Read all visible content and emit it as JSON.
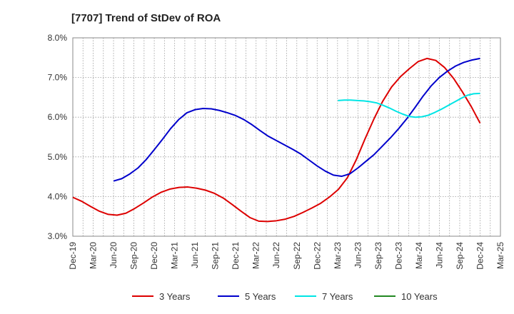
{
  "chart_data": {
    "type": "line",
    "title": "[7707]  Trend of StDev of ROA",
    "xlabel": "",
    "ylabel": "",
    "x_labels": [
      "Dec-19",
      "Mar-20",
      "Jun-20",
      "Sep-20",
      "Dec-20",
      "Mar-21",
      "Jun-21",
      "Sep-21",
      "Dec-21",
      "Mar-22",
      "Jun-22",
      "Sep-22",
      "Dec-22",
      "Mar-23",
      "Jun-23",
      "Sep-23",
      "Dec-23",
      "Mar-24",
      "Jun-24",
      "Sep-24",
      "Dec-24",
      "Mar-25"
    ],
    "y_ticks": [
      3.0,
      4.0,
      5.0,
      6.0,
      7.0,
      8.0
    ],
    "y_tick_labels": [
      "3.0%",
      "4.0%",
      "5.0%",
      "6.0%",
      "7.0%",
      "8.0%"
    ],
    "ylim": [
      3.0,
      8.0
    ],
    "grid": true,
    "legend_position": "bottom",
    "series": [
      {
        "name": "3 Years",
        "color": "#dd0000",
        "values": [
          3.98,
          3.88,
          3.75,
          3.63,
          3.55,
          3.53,
          3.58,
          3.7,
          3.84,
          3.99,
          4.11,
          4.19,
          4.23,
          4.24,
          4.21,
          4.16,
          4.08,
          3.96,
          3.8,
          3.63,
          3.47,
          3.38,
          3.37,
          3.39,
          3.43,
          3.5,
          3.6,
          3.71,
          3.83,
          3.99,
          4.18,
          4.47,
          4.92,
          5.45,
          5.95,
          6.4,
          6.76,
          7.02,
          7.22,
          7.4,
          7.48,
          7.43,
          7.25,
          6.98,
          6.64,
          6.27,
          5.85
        ]
      },
      {
        "name": "5 Years",
        "color": "#0000cc",
        "values": [
          null,
          null,
          null,
          null,
          null,
          4.39,
          4.45,
          4.57,
          4.72,
          4.93,
          5.18,
          5.44,
          5.71,
          5.94,
          6.11,
          6.19,
          6.22,
          6.21,
          6.17,
          6.11,
          6.04,
          5.94,
          5.81,
          5.66,
          5.52,
          5.41,
          5.3,
          5.19,
          5.07,
          4.92,
          4.77,
          4.64,
          4.54,
          4.51,
          4.57,
          4.72,
          4.89,
          5.06,
          5.27,
          5.48,
          5.71,
          5.96,
          6.24,
          6.53,
          6.79,
          7.0,
          7.16,
          7.29,
          7.38,
          7.44,
          7.48
        ]
      },
      {
        "name": "7 Years",
        "color": "#00e5e5",
        "values": [
          null,
          null,
          null,
          null,
          null,
          null,
          null,
          null,
          null,
          null,
          null,
          null,
          null,
          null,
          null,
          null,
          null,
          null,
          null,
          null,
          null,
          null,
          null,
          null,
          null,
          null,
          null,
          null,
          null,
          null,
          null,
          null,
          null,
          null,
          null,
          null,
          null,
          null,
          null,
          null,
          null,
          6.42,
          6.43,
          6.43,
          6.42,
          6.41,
          6.39,
          6.36,
          6.3,
          6.23,
          6.15,
          6.08,
          6.02,
          6.0,
          6.01,
          6.05,
          6.12,
          6.2,
          6.29,
          6.38,
          6.47,
          6.55,
          6.59,
          6.6
        ]
      },
      {
        "name": "10 Years",
        "color": "#228822",
        "values": []
      }
    ]
  }
}
